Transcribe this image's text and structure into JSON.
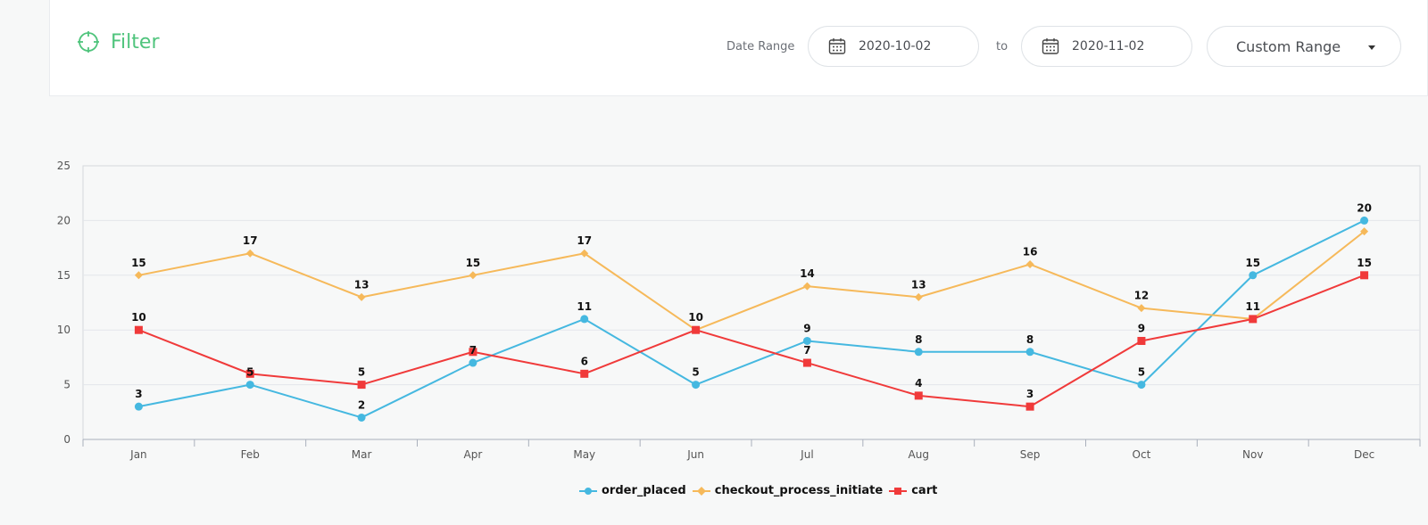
{
  "filter": {
    "title": "Filter",
    "date_range_label": "Date Range",
    "from_date": "2020-10-02",
    "to_label": "to",
    "to_date": "2020-11-02",
    "range_option": "Custom Range",
    "accent_color": "#4fc47c"
  },
  "chart_data": {
    "type": "line",
    "categories": [
      "Jan",
      "Feb",
      "Mar",
      "Apr",
      "May",
      "Jun",
      "Jul",
      "Aug",
      "Sep",
      "Oct",
      "Nov",
      "Dec"
    ],
    "series": [
      {
        "name": "order_placed",
        "color": "#45b8e0",
        "marker": "circle",
        "values": [
          3,
          5,
          2,
          7,
          11,
          5,
          9,
          8,
          8,
          5,
          15,
          20
        ]
      },
      {
        "name": "checkout_process_initiate",
        "color": "#f6b95a",
        "marker": "diamond",
        "values": [
          15,
          17,
          13,
          15,
          17,
          10,
          14,
          13,
          16,
          12,
          11,
          19
        ]
      },
      {
        "name": "cart",
        "color": "#f03a3a",
        "marker": "square",
        "values": [
          10,
          6,
          5,
          8,
          6,
          10,
          7,
          4,
          3,
          9,
          11,
          15
        ]
      }
    ],
    "y_ticks": [
      0,
      5,
      10,
      15,
      20,
      25
    ],
    "ylim": [
      0,
      25
    ],
    "data_labels": {
      "order_placed": [
        3,
        5,
        2,
        7,
        11,
        5,
        9,
        8,
        8,
        5,
        15,
        20
      ],
      "checkout_process_initiate": [
        15,
        17,
        13,
        15,
        17,
        null,
        14,
        13,
        16,
        12,
        null,
        null
      ],
      "cart": [
        10,
        null,
        5,
        null,
        6,
        10,
        7,
        4,
        3,
        9,
        11,
        15
      ]
    },
    "legend": [
      "order_placed",
      "checkout_process_initiate",
      "cart"
    ],
    "legend_position": "bottom",
    "grid": true
  }
}
